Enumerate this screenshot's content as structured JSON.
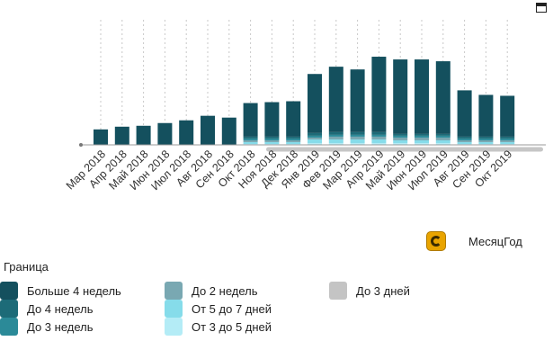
{
  "chart_data": {
    "type": "bar",
    "stacked": true,
    "categories": [
      "Мар 2018",
      "Апр 2018",
      "Май 2018",
      "Июн 2018",
      "Июл 2018",
      "Авг 2018",
      "Сен 2018",
      "Окт 2018",
      "Ноя 2018",
      "Дек 2018",
      "Янв 2019",
      "Фев 2019",
      "Мар 2019",
      "Апр 2019",
      "Май 2019",
      "Июн 2019",
      "Июл 2019",
      "Авг 2019",
      "Сен 2019",
      "Окт 2019"
    ],
    "series": [
      {
        "name": "Больше 4 недель",
        "color": "#14505e",
        "values": [
          17,
          20,
          21,
          24,
          27,
          32,
          30,
          37,
          38,
          39,
          65,
          72,
          69,
          83,
          82,
          82,
          80,
          51,
          46,
          45
        ]
      },
      {
        "name": "До 4 недель",
        "color": "#1d6b78",
        "values": [
          0,
          0,
          0,
          0,
          0,
          0,
          0,
          2,
          2,
          2,
          3,
          3,
          3,
          3,
          2,
          2,
          2,
          2,
          2,
          2
        ]
      },
      {
        "name": "До 3 недель",
        "color": "#2b8a98",
        "values": [
          0,
          0,
          0,
          0,
          0,
          0,
          0,
          2,
          2,
          2,
          2,
          2,
          2,
          2,
          2,
          2,
          2,
          2,
          2,
          2
        ]
      },
      {
        "name": "До 2 недель",
        "color": "#79a8b2",
        "values": [
          0,
          0,
          0,
          0,
          0,
          0,
          0,
          2,
          2,
          2,
          2,
          3,
          3,
          3,
          3,
          3,
          3,
          2,
          2,
          2
        ]
      },
      {
        "name": "От 5 до 7 дней",
        "color": "#86dcea",
        "values": [
          0,
          0,
          0,
          0,
          0,
          0,
          0,
          2,
          2,
          2,
          4,
          4,
          4,
          4,
          3,
          3,
          3,
          2,
          2,
          2
        ]
      },
      {
        "name": "От 3 до 5 дней",
        "color": "#b4ecf6",
        "values": [
          0,
          0,
          0,
          0,
          0,
          0,
          0,
          1,
          1,
          1,
          2,
          2,
          2,
          2,
          2,
          2,
          2,
          1,
          1,
          1
        ]
      },
      {
        "name": "До 3 дней",
        "color": "#c4c4c4",
        "values": [
          0,
          0,
          0,
          0,
          0,
          0,
          0,
          0,
          0,
          0,
          0,
          0,
          0,
          0,
          0,
          0,
          0,
          0,
          0,
          0
        ]
      }
    ],
    "ylim": [
      0,
      100
    ],
    "legend_title": "Граница",
    "legend_position": "bottom-left"
  },
  "ui": {
    "field_label": "МесяцГод",
    "colors": {
      "axis": "#999999",
      "guide": "#c8c8c8",
      "scrollbar": "#c6c6c6",
      "chip": "#e9a400"
    }
  }
}
